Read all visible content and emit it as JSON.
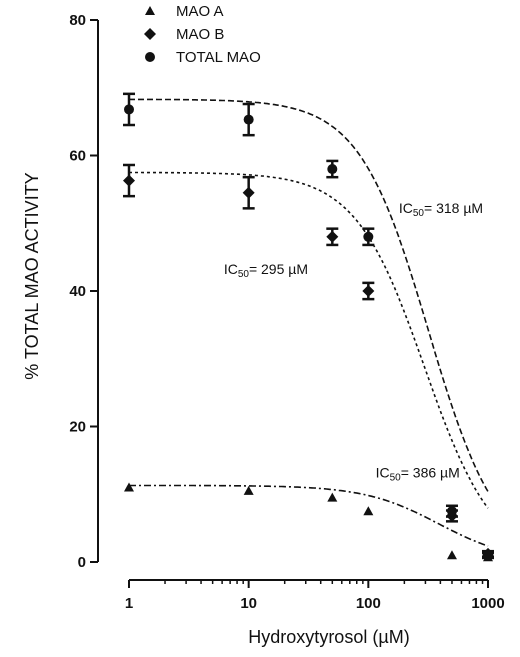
{
  "chart_data": {
    "type": "scatter",
    "xlabel": "Hydroxytyrosol (µM)",
    "ylabel": "% TOTAL MAO ACTIVITY",
    "xscale": "log",
    "xlim": [
      1,
      1000
    ],
    "ylim": [
      0,
      80
    ],
    "x_ticks": [
      1,
      10,
      100,
      1000
    ],
    "x_tick_labels": [
      "1",
      "10",
      "100",
      "1000"
    ],
    "y_ticks": [
      0,
      20,
      40,
      60,
      80
    ],
    "y_tick_labels": [
      "0",
      "20",
      "40",
      "60",
      "80"
    ],
    "grid": false,
    "legend_position": "top-left",
    "series": [
      {
        "name": "MAO A",
        "marker": "triangle",
        "x": [
          1,
          10,
          50,
          100,
          500,
          1000
        ],
        "y": [
          11,
          10.5,
          9.5,
          7.5,
          1,
          0.7
        ],
        "error": [
          0,
          0,
          0,
          0,
          0,
          0
        ],
        "fit": {
          "top": 11.3,
          "bottom": 0,
          "ic50": 386,
          "hill": 1.4
        }
      },
      {
        "name": "MAO B",
        "marker": "diamond",
        "x": [
          1,
          10,
          50,
          100,
          500,
          1000
        ],
        "y": [
          56.3,
          54.5,
          48,
          40,
          6.8,
          1.2
        ],
        "error": [
          2.3,
          2.3,
          1.2,
          1.2,
          0.8,
          0.4
        ],
        "fit": {
          "top": 57.5,
          "bottom": 0,
          "ic50": 295,
          "hill": 1.5
        }
      },
      {
        "name": "TOTAL MAO",
        "marker": "circle",
        "x": [
          1,
          10,
          50,
          100,
          500,
          1000
        ],
        "y": [
          66.8,
          65.3,
          58,
          48,
          7.5,
          1
        ],
        "error": [
          2.3,
          2.3,
          1.2,
          1.2,
          0.8,
          0.4
        ],
        "fit": {
          "top": 68.3,
          "bottom": 0,
          "ic50": 318,
          "hill": 1.5
        }
      }
    ],
    "annotations": [
      {
        "prefix": "IC",
        "sub": "50",
        "suffix": "= 318 µM",
        "x": 180,
        "y": 51.5
      },
      {
        "prefix": "IC",
        "sub": "50",
        "suffix": "= 295 µM",
        "x": 6.2,
        "y": 42.5
      },
      {
        "prefix": "IC",
        "sub": "50",
        "suffix": "= 386 µM",
        "x": 115,
        "y": 12.5
      }
    ]
  }
}
